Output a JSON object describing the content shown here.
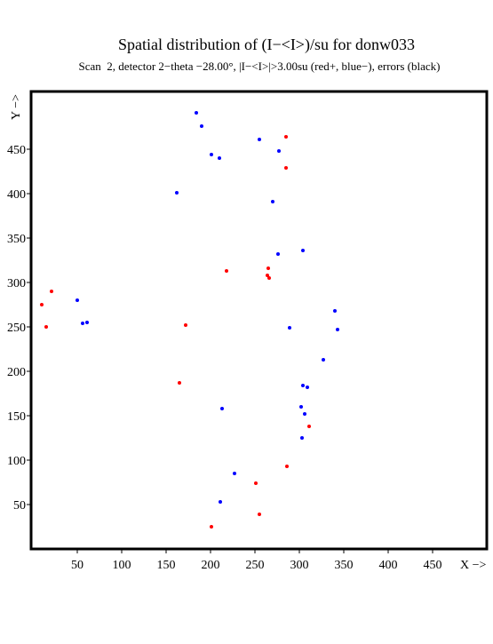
{
  "chart_data": {
    "type": "scatter",
    "title": "Spatial distribution of (I−<I>)/su for donw033",
    "subtitle": "Scan  2, detector 2−theta −28.00°, |I−<I>|>3.00su (red+, blue−), errors (black)",
    "x_label": "X −>",
    "y_label": "Y −>",
    "xlim": [
      -2,
      511
    ],
    "ylim": [
      0,
      515
    ],
    "xticks": [
      50,
      100,
      150,
      200,
      250,
      300,
      350,
      400,
      450
    ],
    "yticks": [
      50,
      100,
      150,
      200,
      250,
      300,
      350,
      400,
      450
    ],
    "series": [
      {
        "color": "#0000ff",
        "x": [
          184,
          190,
          255,
          277,
          201,
          210,
          162,
          270,
          276,
          304,
          50,
          56,
          61,
          340,
          289,
          343,
          327,
          304,
          309,
          213,
          302,
          306,
          303,
          227,
          211
        ],
        "y": [
          491,
          476,
          461,
          448,
          444,
          440,
          401,
          391,
          332,
          336,
          280,
          254,
          255,
          268,
          249,
          247,
          213,
          184,
          182,
          158,
          160,
          152,
          125,
          85,
          53
        ]
      },
      {
        "color": "#ff0000",
        "x": [
          285,
          285,
          218,
          265,
          264,
          266,
          21,
          10,
          15,
          172,
          165,
          311,
          286,
          251,
          255,
          201
        ],
        "y": [
          464,
          429,
          313,
          316,
          308,
          305,
          290,
          275,
          250,
          252,
          187,
          138,
          93,
          74,
          39,
          25
        ]
      }
    ]
  }
}
